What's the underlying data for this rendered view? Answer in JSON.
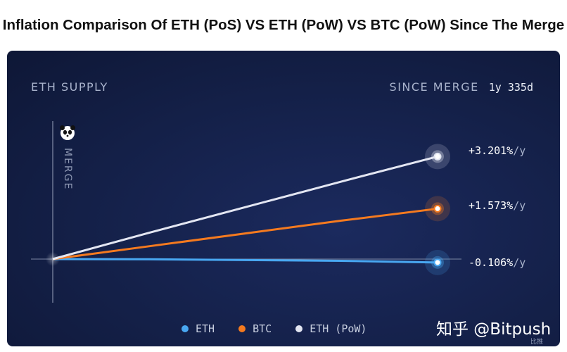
{
  "page_title": "Inflation Comparison Of ETH (PoS) VS ETH (PoW) VS  BTC (PoW) Since The Merge",
  "header": {
    "left_label": "ETH SUPPLY",
    "right_label": "SINCE MERGE",
    "duration": "1y 335d"
  },
  "merge_label": "MERGE",
  "watermark": "知乎 @Bitpush",
  "watermark_small": "比推",
  "colors": {
    "eth": "#49a8f2",
    "btc": "#f57a1f",
    "eth_pow": "#e3e6f2",
    "background": "#142048"
  },
  "chart_data": {
    "type": "line",
    "title": "",
    "xlabel": "",
    "ylabel": "",
    "x_start_label": "MERGE",
    "x": [
      0,
      0.25,
      0.5,
      0.75,
      1.0
    ],
    "series": [
      {
        "name": "ETH",
        "color": "#49a8f2",
        "end_label": "-0.106%",
        "end_value": -0.106,
        "values": [
          0,
          -0.005,
          -0.03,
          -0.055,
          -0.106
        ]
      },
      {
        "name": "BTC",
        "color": "#f57a1f",
        "end_label": "+1.573%",
        "end_value": 1.573,
        "values": [
          0,
          0.4,
          0.8,
          1.2,
          1.573
        ]
      },
      {
        "name": "ETH (PoW)",
        "color": "#e3e6f2",
        "end_label": "+3.201%",
        "end_value": 3.201,
        "values": [
          0,
          0.82,
          1.62,
          2.42,
          3.201
        ]
      }
    ],
    "unit_suffix": "/y",
    "legend": [
      "ETH",
      "BTC",
      "ETH (PoW)"
    ],
    "legend_position": "bottom"
  }
}
